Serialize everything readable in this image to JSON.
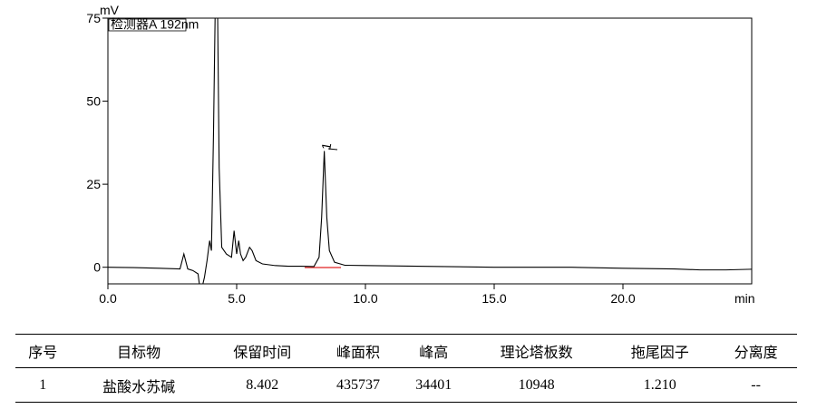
{
  "chart_data": {
    "type": "line",
    "y_unit": "mV",
    "x_unit": "min",
    "detector_label": "检测器A 192nm",
    "peak_label": "1",
    "x": [
      0,
      1,
      2,
      2.8,
      2.95,
      3.1,
      3.3,
      3.5,
      3.6,
      3.75,
      3.85,
      3.95,
      4.02,
      4.1,
      4.18,
      4.25,
      4.32,
      4.42,
      4.6,
      4.8,
      4.9,
      5.0,
      5.08,
      5.15,
      5.25,
      5.35,
      5.5,
      5.6,
      5.75,
      6.0,
      6.5,
      7.0,
      7.5,
      8.0,
      8.2,
      8.3,
      8.402,
      8.5,
      8.6,
      8.8,
      9.2,
      10,
      12,
      15,
      18,
      20,
      22,
      23,
      24,
      25
    ],
    "series": [
      {
        "color": "#000000",
        "values": [
          0,
          -0.1,
          -0.3,
          -0.5,
          4,
          -0.5,
          -1,
          -2,
          -8,
          -3,
          2,
          8,
          5,
          40,
          85,
          85,
          30,
          6,
          4,
          3,
          11,
          4,
          8,
          4,
          2,
          3,
          6,
          5,
          2,
          1,
          0.5,
          0.3,
          0.3,
          0.2,
          3,
          15,
          35,
          15,
          5,
          1.5,
          0.6,
          0.5,
          0.3,
          0,
          0,
          -0.3,
          -0.5,
          -0.8,
          -0.8,
          -0.6
        ]
      }
    ],
    "xlim": [
      0,
      25
    ],
    "ylim": [
      -5,
      75
    ],
    "xticks": [
      {
        "value": 0,
        "label": "0.0"
      },
      {
        "value": 5,
        "label": "5.0"
      },
      {
        "value": 10,
        "label": "10.0"
      },
      {
        "value": 15,
        "label": "15.0"
      },
      {
        "value": 20,
        "label": "20.0"
      }
    ],
    "yticks": [
      0,
      25,
      50,
      75
    ],
    "grid": false
  },
  "table": {
    "headers": [
      "序号",
      "目标物",
      "保留时间",
      "峰面积",
      "峰高",
      "理论塔板数",
      "拖尾因子",
      "分离度"
    ],
    "rows": [
      [
        "1",
        "盐酸水苏碱",
        "8.402",
        "435737",
        "34401",
        "10948",
        "1.210",
        "--"
      ]
    ]
  }
}
